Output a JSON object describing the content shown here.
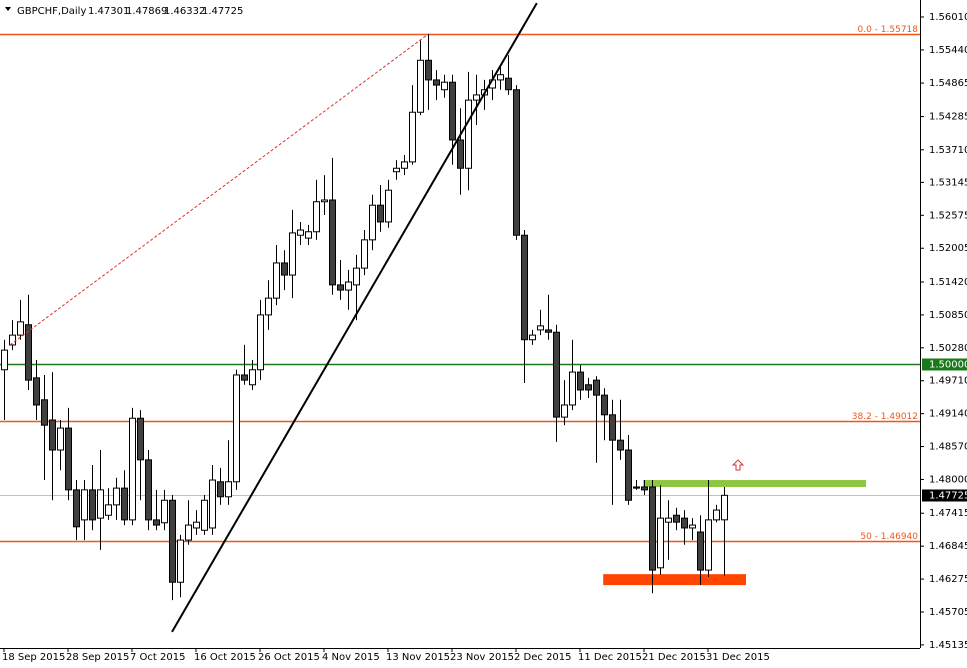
{
  "chart_data": {
    "type": "candlestick",
    "title": "GBPCHF,Daily",
    "categories": [
      "18 Sep 2015",
      null,
      null,
      null,
      null,
      null,
      null,
      null,
      "28 Sep 2015",
      null,
      null,
      null,
      null,
      null,
      null,
      null,
      "7 Oct 2015",
      null,
      null,
      null,
      null,
      null,
      null,
      null,
      "16 Oct 2015",
      null,
      null,
      null,
      null,
      null,
      null,
      null,
      "26 Oct 2015",
      null,
      null,
      null,
      null,
      null,
      null,
      null,
      "4 Nov 2015",
      null,
      null,
      null,
      null,
      null,
      null,
      null,
      "13 Nov 2015",
      null,
      null,
      null,
      null,
      null,
      null,
      null,
      "23 Nov 2015",
      null,
      null,
      null,
      null,
      null,
      null,
      null,
      "2 Dec 2015",
      null,
      null,
      null,
      null,
      null,
      null,
      null,
      "11 Dec 2015",
      null,
      null,
      null,
      null,
      null,
      null,
      null,
      "21 Dec 2015",
      null,
      null,
      null,
      null,
      null,
      null,
      null,
      "31 Dec 2015",
      null,
      null
    ],
    "open": [
      1.499,
      1.5033,
      1.505,
      1.5068,
      1.4976,
      1.4938,
      1.4903,
      1.4851,
      1.4889,
      1.4782,
      1.473,
      1.4782,
      1.4733,
      1.4738,
      1.4756,
      1.4785,
      1.473,
      1.4906,
      1.4834,
      1.473,
      1.4725,
      1.4764,
      1.4622,
      1.4695,
      1.4716,
      1.4712,
      1.4716,
      1.4796,
      1.477,
      1.4796,
      1.4981,
      1.4964,
      1.499,
      1.5085,
      1.5114,
      1.5175,
      1.5154,
      1.5223,
      1.5218,
      1.5229,
      1.5281,
      1.5284,
      1.5137,
      1.5128,
      1.5137,
      1.5166,
      1.5215,
      1.5275,
      1.5246,
      1.5333,
      1.5339,
      1.535,
      1.5436,
      1.5526,
      1.5492,
      1.5475,
      1.5488,
      1.5388,
      1.5339,
      1.5457,
      1.5466,
      1.5478,
      1.5492,
      1.5495,
      1.5475,
      1.5223,
      1.5042,
      1.5059,
      1.5059,
      1.5055,
      1.4908,
      1.4929,
      1.4986,
      1.4964,
      1.4972,
      1.4946,
      1.4912,
      1.4868,
      1.4851,
      1.4787,
      1.4787,
      1.4787,
      1.4647,
      1.4726,
      1.4738,
      1.4733,
      1.4716,
      1.4709,
      1.4643,
      1.473,
      1.47301
    ],
    "high": [
      1.5042,
      1.5076,
      1.5111,
      1.512,
      1.5007,
      1.4981,
      1.4986,
      1.4903,
      1.4924,
      1.4799,
      1.4799,
      1.4825,
      1.4851,
      1.4785,
      1.4803,
      1.4816,
      1.4924,
      1.492,
      1.4851,
      1.4782,
      1.4782,
      1.4773,
      1.4704,
      1.4764,
      1.4747,
      1.4773,
      1.4825,
      1.482,
      1.4868,
      1.499,
      1.5033,
      1.5007,
      1.5111,
      1.5145,
      1.5206,
      1.5197,
      1.5267,
      1.5246,
      1.5241,
      1.5319,
      1.5327,
      1.5357,
      1.518,
      1.5163,
      1.5189,
      1.5232,
      1.5293,
      1.531,
      1.5319,
      1.5353,
      1.5362,
      1.5483,
      1.5561,
      1.5572,
      1.5509,
      1.5501,
      1.5501,
      1.5443,
      1.5506,
      1.5501,
      1.5492,
      1.5509,
      1.5518,
      1.5535,
      1.5483,
      1.5232,
      1.5059,
      1.5094,
      1.512,
      1.5068,
      1.4972,
      1.5042,
      1.4998,
      1.4976,
      1.4979,
      1.4958,
      1.4938,
      1.4938,
      1.4877,
      1.4799,
      1.4799,
      1.4799,
      1.479,
      1.4764,
      1.4751,
      1.4747,
      1.4733,
      1.4738,
      1.4799,
      1.4756,
      1.47869
    ],
    "low": [
      1.4903,
      1.5024,
      1.5042,
      1.4955,
      1.4903,
      1.4799,
      1.4764,
      1.4816,
      1.4764,
      1.4695,
      1.4695,
      1.4712,
      1.4678,
      1.473,
      1.473,
      1.4721,
      1.4721,
      1.4764,
      1.4712,
      1.4712,
      1.4712,
      1.4591,
      1.4596,
      1.4687,
      1.4704,
      1.4704,
      1.4704,
      1.4756,
      1.4756,
      1.4782,
      1.4964,
      1.4955,
      1.4972,
      1.5059,
      1.5102,
      1.5128,
      1.5114,
      1.5206,
      1.5206,
      1.5215,
      1.5258,
      1.512,
      1.5111,
      1.5094,
      1.5076,
      1.5154,
      1.5197,
      1.5229,
      1.5236,
      1.5319,
      1.5327,
      1.5345,
      1.5431,
      1.544,
      1.5457,
      1.5461,
      1.5345,
      1.5293,
      1.5301,
      1.5414,
      1.544,
      1.5457,
      1.5475,
      1.5466,
      1.5215,
      1.4967,
      1.5033,
      1.505,
      1.5042,
      1.4865,
      1.4894,
      1.492,
      1.4938,
      1.4941,
      1.4829,
      1.4868,
      1.4756,
      1.4834,
      1.4756,
      1.4782,
      1.4773,
      1.4603,
      1.4635,
      1.4661,
      1.4712,
      1.4687,
      1.4695,
      1.4617,
      1.4631,
      1.4726,
      1.46332
    ],
    "close": [
      1.5024,
      1.505,
      1.5073,
      1.4972,
      1.4929,
      1.4894,
      1.4851,
      1.4889,
      1.4782,
      1.4718,
      1.4782,
      1.473,
      1.4782,
      1.4756,
      1.4785,
      1.473,
      1.4906,
      1.4834,
      1.473,
      1.4721,
      1.4764,
      1.4622,
      1.4695,
      1.4721,
      1.4726,
      1.4764,
      1.4799,
      1.477,
      1.4796,
      1.4981,
      1.4972,
      1.499,
      1.5085,
      1.5114,
      1.5175,
      1.5154,
      1.5227,
      1.5232,
      1.5229,
      1.5281,
      1.5284,
      1.5137,
      1.5128,
      1.5142,
      1.5166,
      1.5215,
      1.5275,
      1.5246,
      1.5301,
      1.5339,
      1.535,
      1.5436,
      1.5526,
      1.5492,
      1.5483,
      1.5488,
      1.5388,
      1.5339,
      1.5457,
      1.5466,
      1.5475,
      1.5492,
      1.5501,
      1.5475,
      1.5223,
      1.5042,
      1.505,
      1.5066,
      1.5055,
      1.4908,
      1.4929,
      1.4986,
      1.4955,
      1.4955,
      1.4946,
      1.4912,
      1.4868,
      1.4851,
      1.4764,
      1.4785,
      1.4782,
      1.4643,
      1.4733,
      1.4733,
      1.4726,
      1.4716,
      1.4721,
      1.4643,
      1.473,
      1.4747,
      1.47725
    ],
    "up_color": "#ffffff",
    "down_color": "#404040",
    "ylim": [
      1.45081,
      1.56304
    ],
    "yticks": [
      {
        "value": 1.5601,
        "label": "1.56010"
      },
      {
        "value": 1.5544,
        "label": "1.55440"
      },
      1.54865,
      1.54285,
      {
        "value": 1.5371,
        "label": "1.53710"
      },
      1.53145,
      1.52575,
      1.52005,
      {
        "value": 1.5142,
        "label": "1.51420"
      },
      {
        "value": 1.5085,
        "label": "1.50850"
      },
      {
        "value": 1.5028,
        "label": "1.50280"
      },
      {
        "value": 1.4971,
        "label": "1.49710"
      },
      {
        "value": 1.4914,
        "label": "1.49140"
      },
      {
        "value": 1.4857,
        "label": "1.48570"
      },
      {
        "value": 1.48,
        "label": "1.48000"
      },
      1.47415,
      1.46845,
      1.46275,
      1.45705,
      1.45135
    ],
    "levels": [
      {
        "value": 1.55718,
        "label": "0.0 - 1.55718",
        "color": "#f0561a",
        "style": "fib"
      },
      {
        "value": 1.5,
        "label": "1.50000",
        "color": "#1a7a1a",
        "style": "box"
      },
      {
        "value": 1.49012,
        "label": "38.2 - 1.49012",
        "color": "#f0561a",
        "style": "fib"
      },
      {
        "value": 1.47725,
        "label": "1.47725",
        "color": "#c0c0c0",
        "style": "price"
      },
      {
        "value": 1.4694,
        "label": "50 - 1.46940",
        "color": "#f0561a",
        "style": "fib"
      }
    ],
    "trendlines": [
      {
        "x": [
          21,
          66.6
        ],
        "y": [
          1.4536,
          1.5625
        ],
        "color": "#000000",
        "dashed": false
      },
      {
        "x": [
          0.75,
          52.9
        ],
        "y": [
          1.5033,
          1.557
        ],
        "color": "#e03030",
        "dashed": true
      }
    ],
    "zones": [
      {
        "x": [
          79.9,
          107.75
        ],
        "y": [
          1.4787,
          1.4799
        ],
        "color": "#8dc63f"
      },
      {
        "x": [
          74.9,
          92.75
        ],
        "y": [
          1.4617,
          1.4636
        ],
        "color": "#ff4500"
      }
    ],
    "arrows": [
      {
        "x": 91.75,
        "y": 1.4825,
        "color": "#e03030"
      }
    ]
  }
}
